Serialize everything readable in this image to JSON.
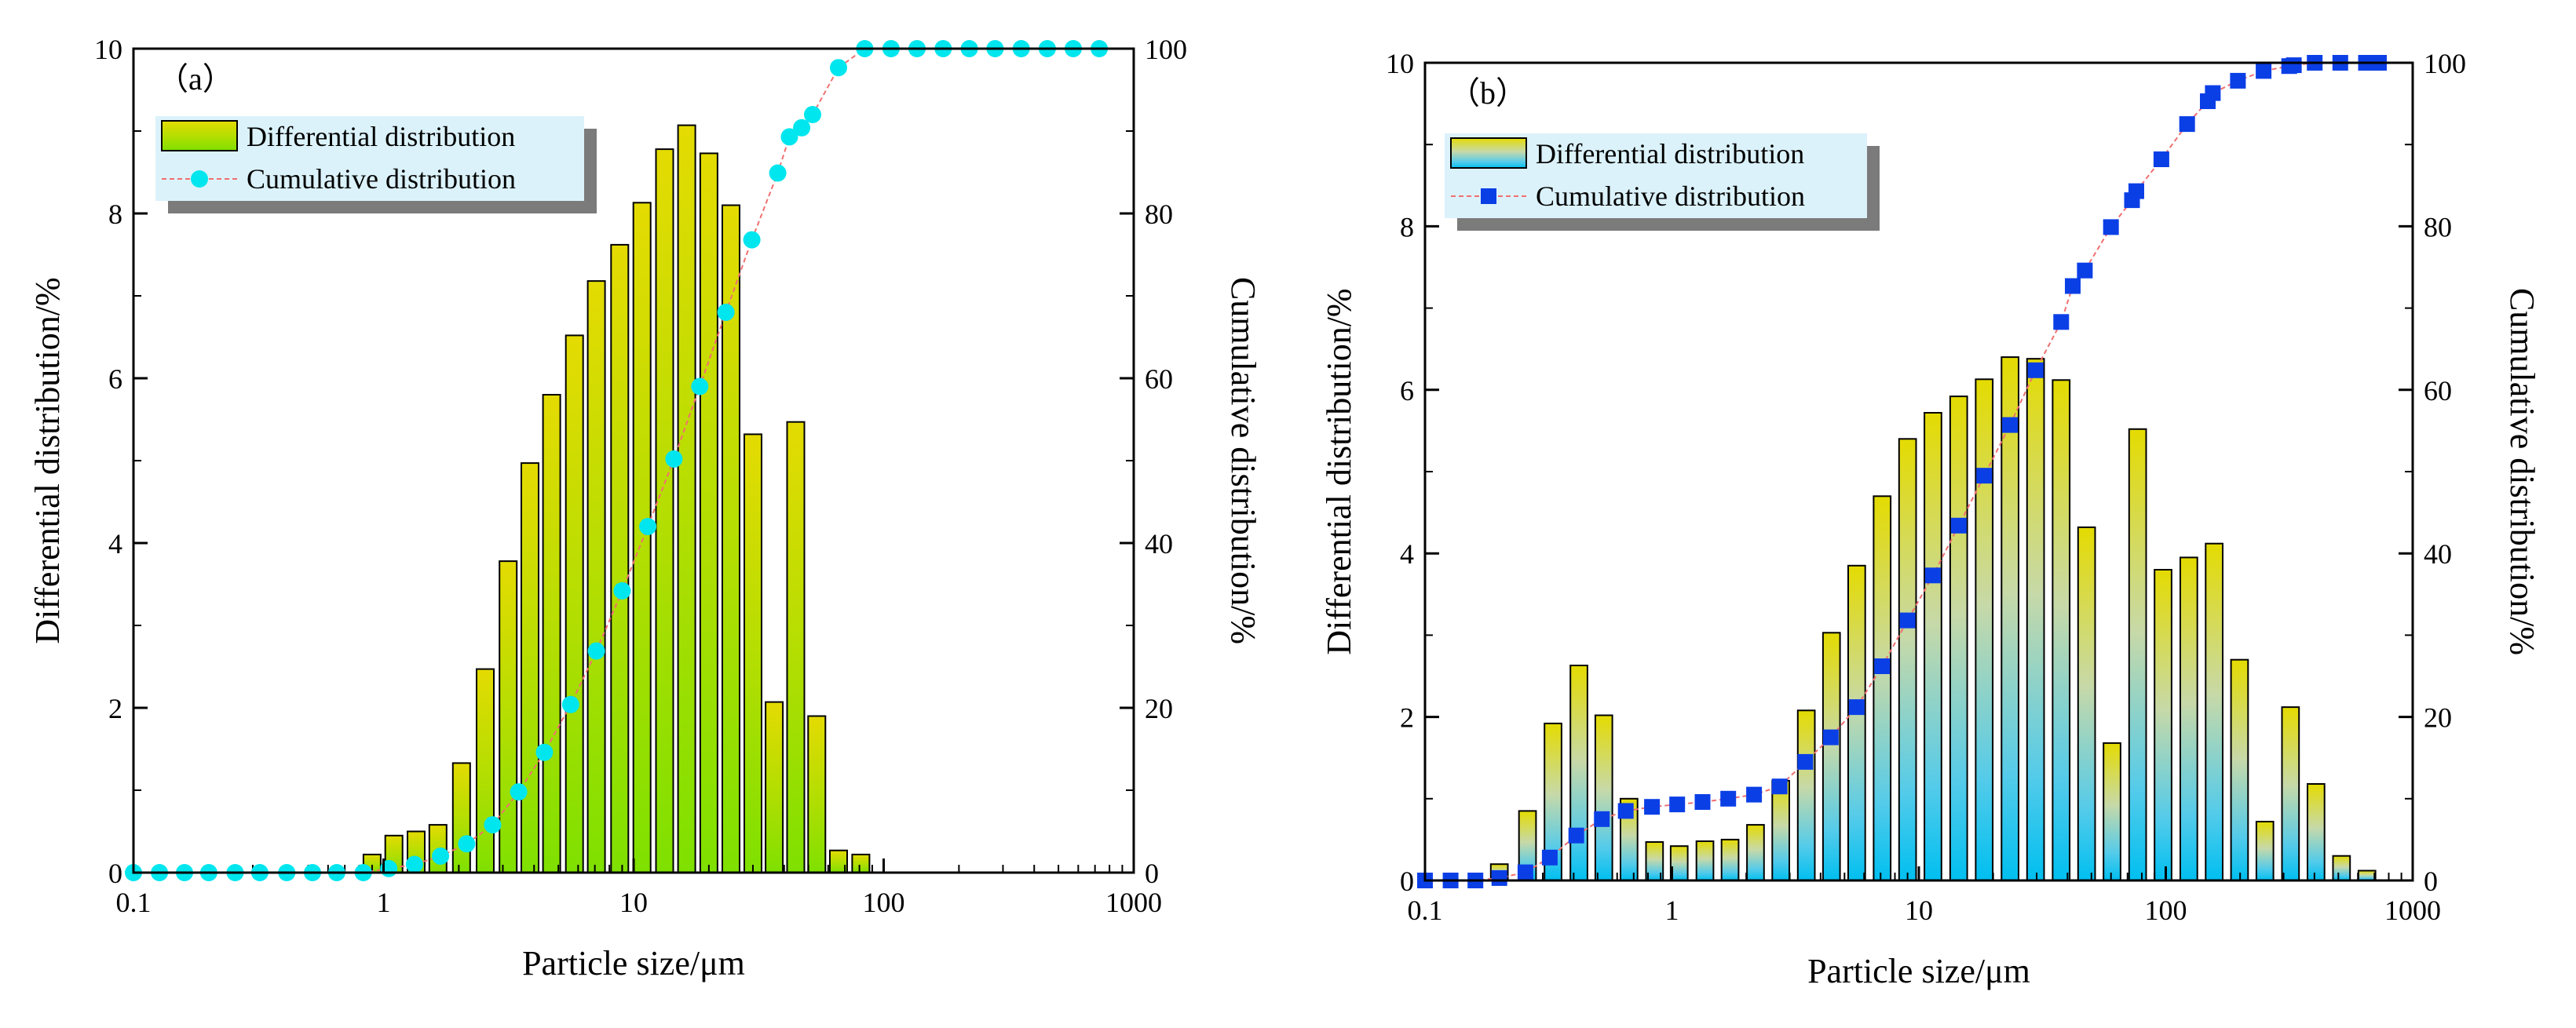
{
  "colors": {
    "bar_top": "#e4db02",
    "bar_bottom_a": "#7fe000",
    "bar_bottom_b": "#00bff0",
    "cum_a": "#00e6ee",
    "cum_b": "#0b3fe6",
    "dash_line": "#f07070",
    "legend_bg": "#dbf2fa",
    "legend_shadow": "#7b7b7b"
  },
  "chart_data": [
    {
      "id": "a",
      "type": "bar",
      "panel_label": "（a）",
      "xlabel": "Particle size/μm",
      "ylabel": "Differential distribution/%",
      "y2label": "Cumulative distribution/%",
      "xscale": "log",
      "xlim": [
        0.1,
        1000
      ],
      "ylim": [
        0,
        10
      ],
      "y2lim": [
        0,
        100
      ],
      "xticks": [
        "0.1",
        "1",
        "10",
        "100",
        "1000"
      ],
      "yticks": [
        "0",
        "2",
        "4",
        "6",
        "8",
        "10"
      ],
      "y2ticks": [
        "0",
        "20",
        "40",
        "60",
        "80",
        "100"
      ],
      "legend": [
        "Differential distribution",
        "Cumulative distribution"
      ],
      "legend_position": "top-left",
      "bars": {
        "name": "Differential distribution",
        "x": [
          0.9,
          1.1,
          1.35,
          1.65,
          2.05,
          2.55,
          3.15,
          3.85,
          4.7,
          5.8,
          7.1,
          8.8,
          10.8,
          13.3,
          16.3,
          20.0,
          24.5,
          30.0,
          36.5,
          44.5,
          54.0,
          66.0,
          81.0,
          100.0
        ],
        "values": [
          0.22,
          0.45,
          0.5,
          0.58,
          1.33,
          2.47,
          3.78,
          4.97,
          5.8,
          6.52,
          7.18,
          7.62,
          8.13,
          8.78,
          9.07,
          8.73,
          8.1,
          5.32,
          2.07,
          5.47,
          1.9,
          0.27,
          0.22,
          0.0
        ]
      },
      "cumulative": {
        "name": "Cumulative distribution",
        "marker": "circle",
        "x": [
          0.1,
          0.127,
          0.16,
          0.2,
          0.255,
          0.32,
          0.41,
          0.52,
          0.65,
          0.83,
          1.05,
          1.33,
          1.69,
          2.15,
          2.73,
          3.47,
          4.4,
          5.6,
          7.1,
          9.0,
          11.4,
          14.5,
          18.4,
          23.4,
          29.7,
          37.7,
          42.0,
          47.0,
          52.0,
          66.0,
          84.0,
          107.0,
          136.0,
          173.0,
          220.0,
          279.0,
          355.0,
          451.0,
          573.0,
          728.0
        ],
        "values": [
          0,
          0,
          0,
          0,
          0,
          0,
          0,
          0,
          0,
          0,
          0.5,
          1,
          2,
          3.5,
          5.8,
          9.8,
          14.6,
          20.4,
          26.9,
          34.2,
          42,
          50.2,
          59,
          68,
          76.8,
          84.9,
          89.3,
          90.4,
          92,
          97.7,
          100,
          100,
          100,
          100,
          100,
          100,
          100,
          100,
          100,
          100
        ]
      }
    },
    {
      "id": "b",
      "type": "bar",
      "panel_label": "（b）",
      "xlabel": "Particle size/μm",
      "ylabel": "Differential distribution/%",
      "y2label": "Cumulative distribution/%",
      "xscale": "log",
      "xlim": [
        0.1,
        1000
      ],
      "ylim": [
        0,
        10
      ],
      "y2lim": [
        0,
        100
      ],
      "xticks": [
        "0.1",
        "1",
        "10",
        "100",
        "1000"
      ],
      "yticks": [
        "0",
        "2",
        "4",
        "6",
        "8",
        "10"
      ],
      "y2ticks": [
        "0",
        "20",
        "40",
        "60",
        "80",
        "100"
      ],
      "legend": [
        "Differential distribution",
        "Cumulative distribution"
      ],
      "legend_position": "top-left",
      "bars": {
        "name": "Differential distribution",
        "x": [
          0.2,
          0.26,
          0.33,
          0.42,
          0.53,
          0.67,
          0.85,
          1.07,
          1.36,
          1.72,
          2.18,
          2.76,
          3.5,
          4.43,
          5.6,
          7.1,
          9.0,
          11.4,
          14.5,
          18.4,
          23.4,
          29.7,
          37.7,
          47.8,
          60.6,
          76.9,
          97.5,
          124.0,
          157.0,
          199.0,
          252.0,
          320.0,
          406.0,
          515.0,
          653.0
        ],
        "values": [
          0.2,
          0.85,
          1.92,
          2.63,
          2.02,
          1.0,
          0.47,
          0.42,
          0.48,
          0.5,
          0.68,
          1.22,
          2.08,
          3.03,
          3.85,
          4.7,
          5.4,
          5.72,
          5.92,
          6.13,
          6.4,
          6.38,
          6.12,
          4.32,
          1.68,
          5.52,
          3.8,
          3.95,
          4.12,
          2.7,
          0.72,
          2.12,
          1.18,
          0.3,
          0.12
        ]
      },
      "cumulative": {
        "name": "Cumulative distribution",
        "marker": "square",
        "x": [
          0.1,
          0.127,
          0.16,
          0.2,
          0.255,
          0.32,
          0.41,
          0.52,
          0.65,
          0.83,
          1.05,
          1.33,
          1.69,
          2.15,
          2.73,
          3.47,
          4.4,
          5.6,
          7.1,
          9.0,
          11.4,
          14.5,
          18.4,
          23.4,
          29.7,
          37.7,
          42.0,
          47.0,
          60.0,
          73.0,
          76.0,
          96.0,
          122.0,
          148.0,
          155.0,
          196.0,
          249.0,
          316.0,
          330.0,
          401.0,
          509.0,
          647.0,
          730.0
        ],
        "values": [
          0,
          0,
          0,
          0.3,
          1,
          2.8,
          5.5,
          7.5,
          8.5,
          9,
          9.3,
          9.6,
          10,
          10.5,
          11.5,
          14.5,
          17.5,
          21.2,
          26.2,
          31.8,
          37.3,
          43.4,
          49.5,
          55.7,
          62.4,
          68.3,
          72.7,
          74.6,
          79.9,
          83.2,
          84.3,
          88.2,
          92.5,
          95.3,
          96.3,
          97.8,
          99,
          99.6,
          99.7,
          100,
          100,
          100,
          100
        ]
      }
    }
  ]
}
